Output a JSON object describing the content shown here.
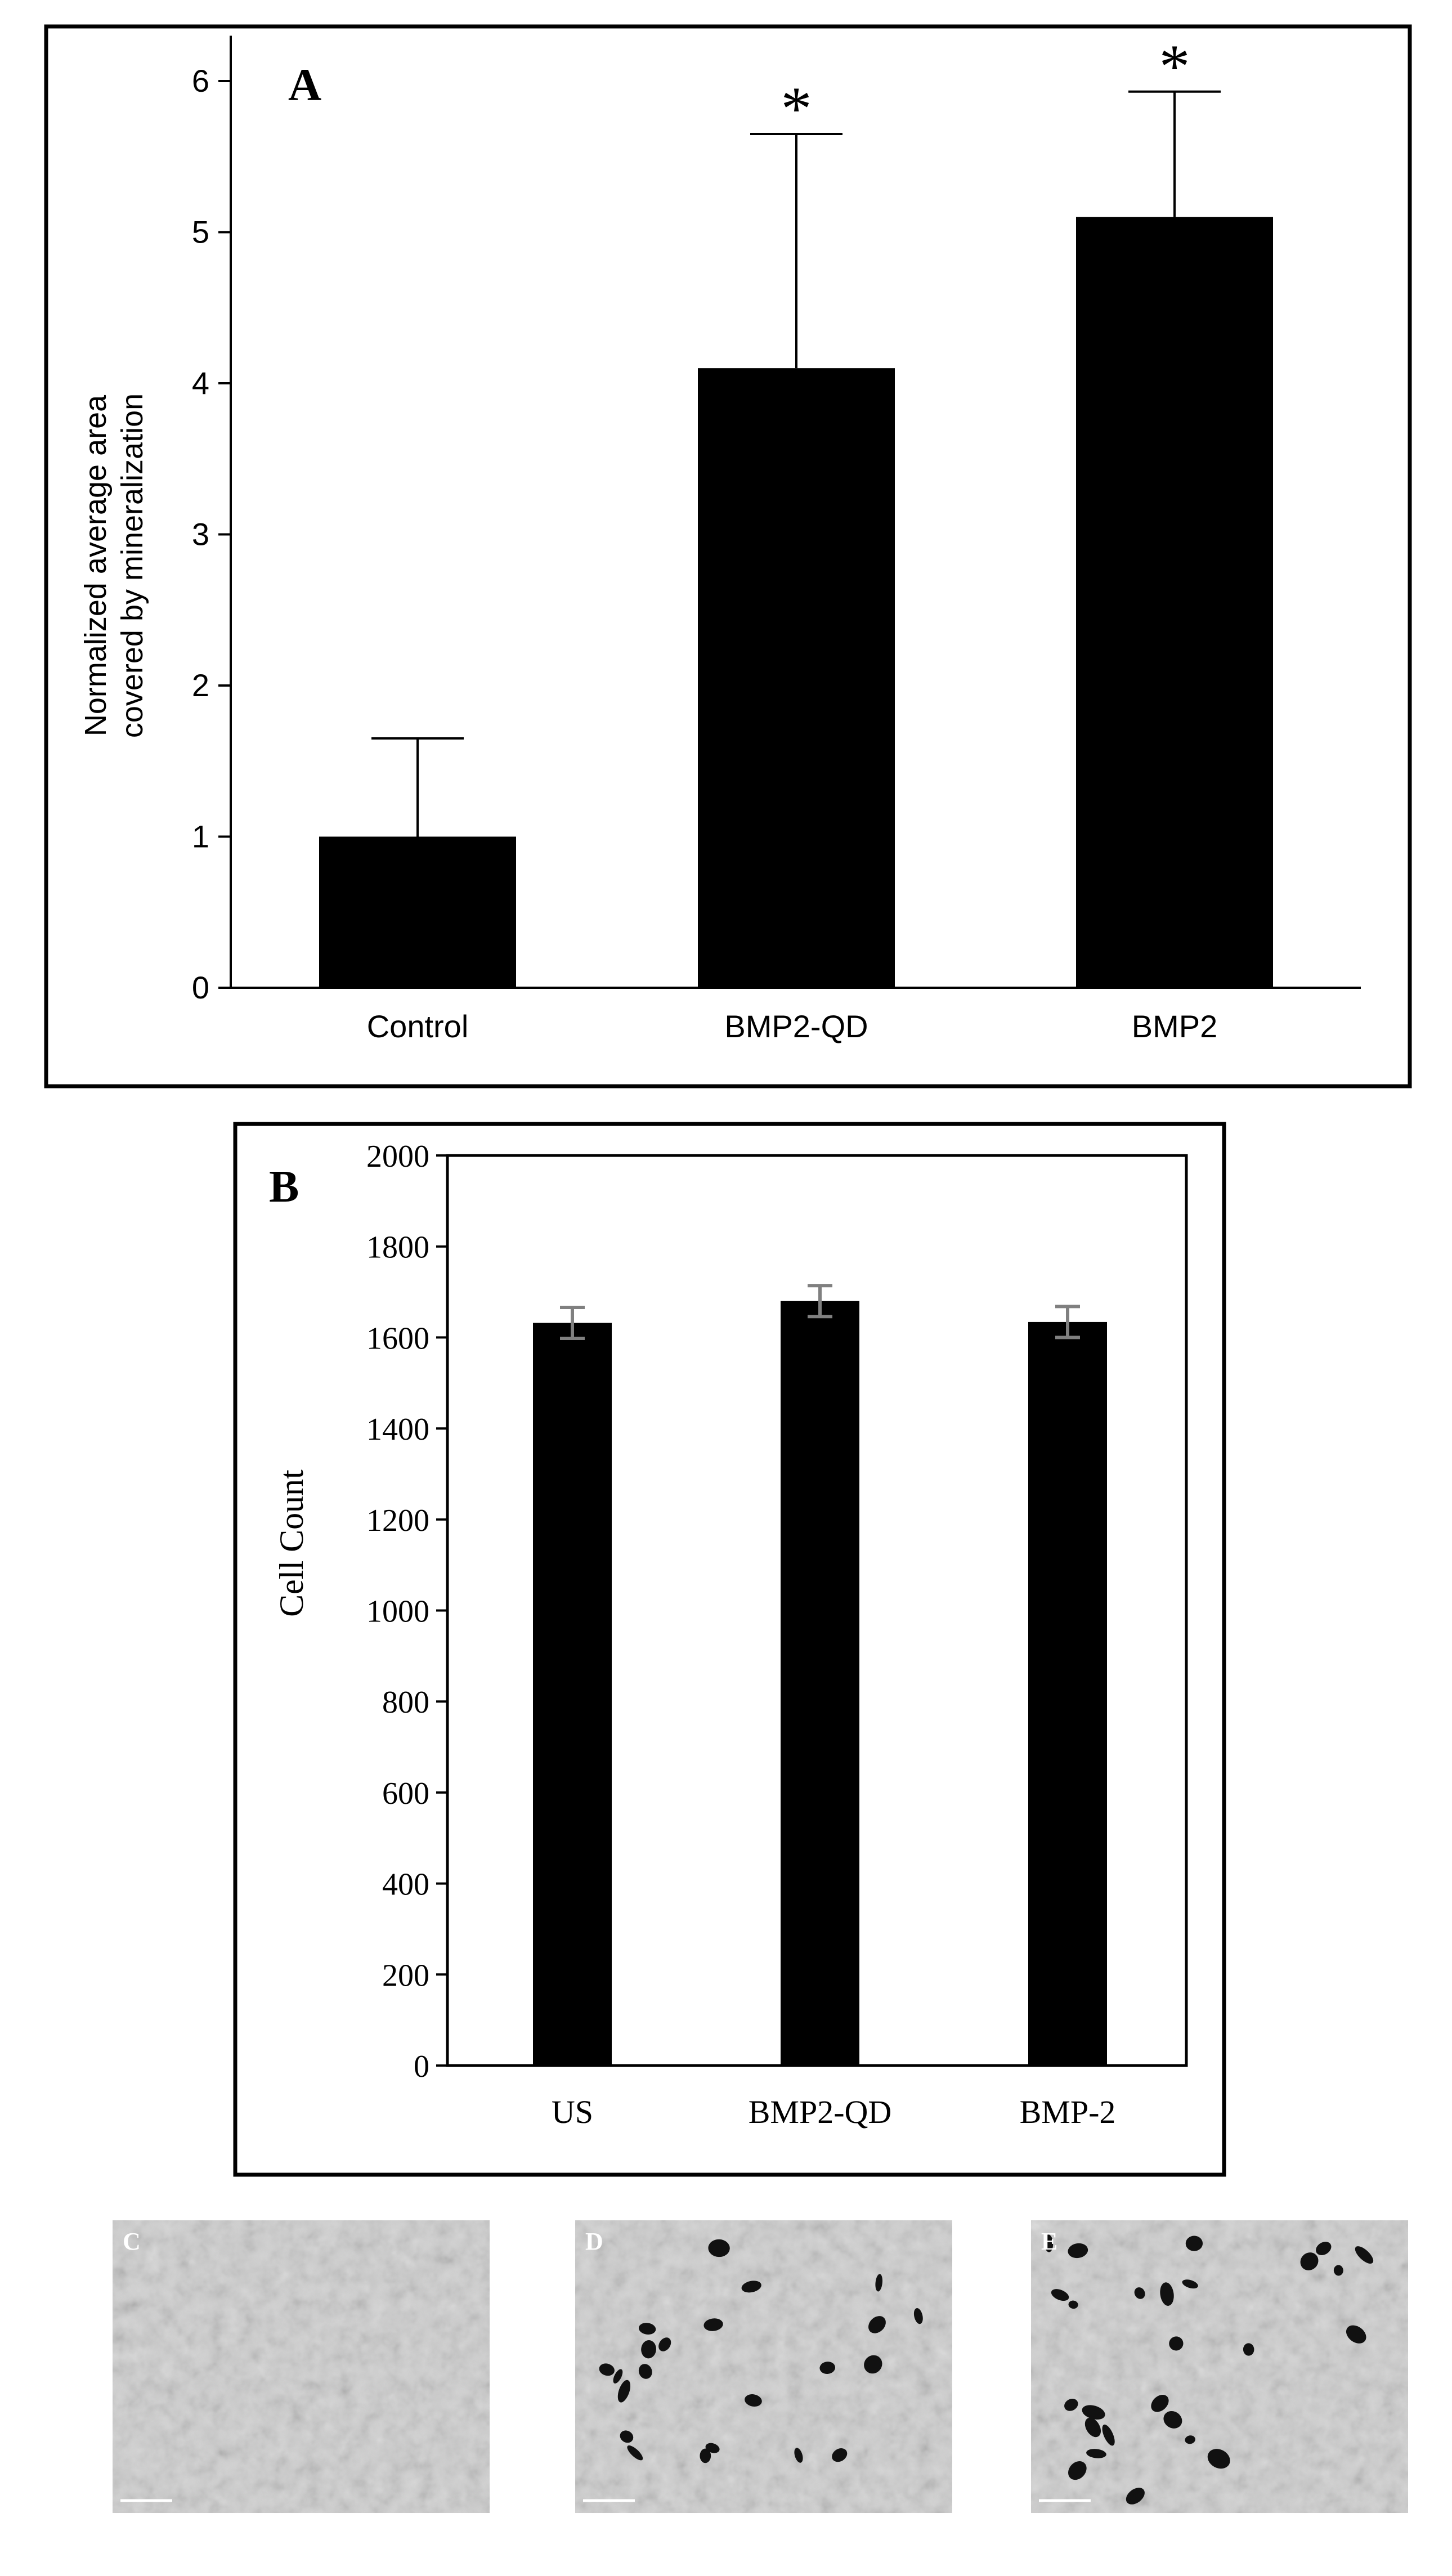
{
  "chart_data": [
    {
      "panel_label": "A",
      "type": "bar",
      "categories": [
        "Control",
        "BMP2-QD",
        "BMP2"
      ],
      "values": [
        1.0,
        4.1,
        5.1
      ],
      "error_upper": [
        1.65,
        5.65,
        5.93
      ],
      "significance": [
        "",
        "*",
        "*"
      ],
      "ylabel_lines": [
        "Normalized average area",
        "covered by mineralization"
      ],
      "xlabel": "",
      "ylim": [
        0,
        6.3
      ],
      "yticks": [
        0,
        1,
        2,
        3,
        4,
        5,
        6
      ],
      "bar_color": "#000000",
      "grid": false
    },
    {
      "panel_label": "B",
      "type": "bar",
      "categories": [
        "US",
        "BMP2-QD",
        "BMP-2"
      ],
      "values": [
        1632,
        1680,
        1634
      ],
      "error_low": [
        1598,
        1646,
        1600
      ],
      "error_high": [
        1666,
        1714,
        1668
      ],
      "ylabel": "Cell Count",
      "xlabel": "",
      "ylim": [
        0,
        2000
      ],
      "yticks": [
        0,
        200,
        400,
        600,
        800,
        1000,
        1200,
        1400,
        1600,
        1800,
        2000
      ],
      "bar_color": "#000000",
      "error_color": "#808080",
      "grid": false
    }
  ],
  "micrographs": [
    {
      "label": "C",
      "deposit_count": 0
    },
    {
      "label": "D",
      "deposit_count": 22
    },
    {
      "label": "E",
      "deposit_count": 26
    }
  ],
  "colors": {
    "bar": "#000000",
    "errorbar_b": "#808080",
    "micro_bg": "#cfcfcf"
  }
}
